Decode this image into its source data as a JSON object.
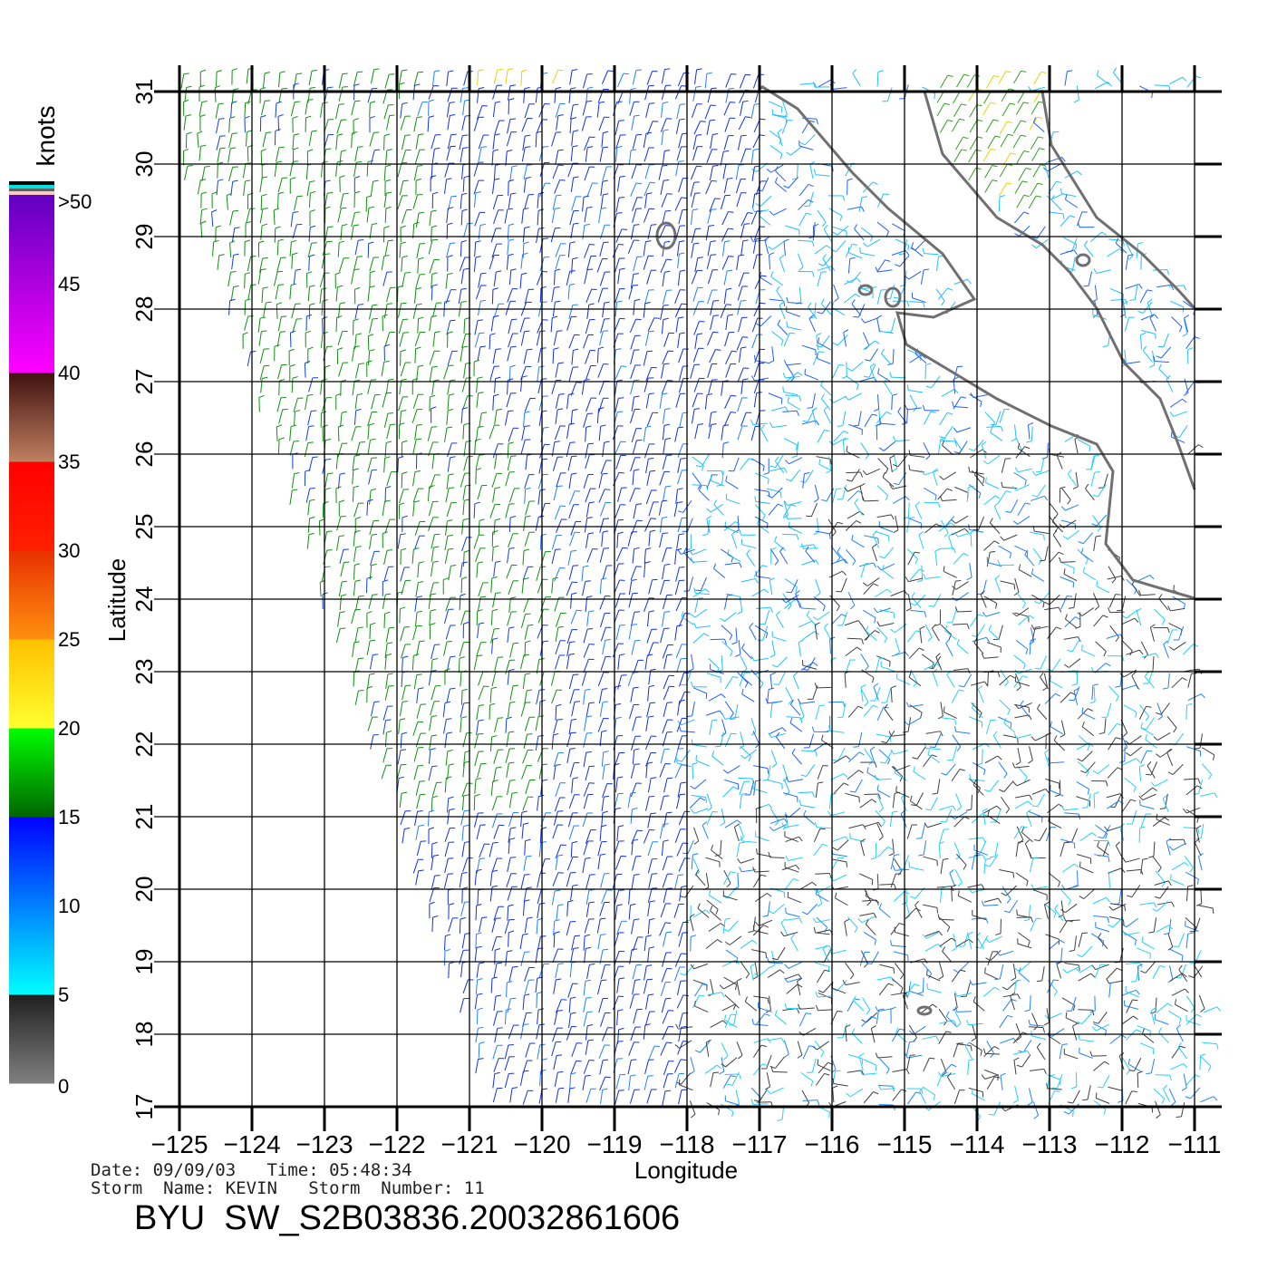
{
  "chart_data": {
    "type": "wind-vector-map",
    "xlabel": "Longitude",
    "ylabel": "Latitude",
    "xlim": [
      -125,
      -111
    ],
    "ylim": [
      17,
      31
    ],
    "x_ticks": [
      "−125",
      "−124",
      "−123",
      "−122",
      "−121",
      "−120",
      "−119",
      "−118",
      "−117",
      "−116",
      "−115",
      "−114",
      "−113",
      "−112",
      "−111"
    ],
    "y_ticks": [
      "17",
      "18",
      "19",
      "20",
      "21",
      "22",
      "23",
      "24",
      "25",
      "26",
      "27",
      "28",
      "29",
      "30",
      "31"
    ],
    "grid": true,
    "colorbar": {
      "unit": "knots",
      "labels": [
        "0",
        "5",
        "10",
        "15",
        "20",
        "25",
        "30",
        "35",
        "40",
        "45",
        ">50"
      ],
      "bins": [
        {
          "min": 0,
          "max": 5,
          "colors": [
            "#808080",
            "#202020"
          ]
        },
        {
          "min": 5,
          "max": 10,
          "colors": [
            "#00ffff",
            "#0080ff"
          ]
        },
        {
          "min": 10,
          "max": 15,
          "colors": [
            "#0080ff",
            "#0000ff"
          ]
        },
        {
          "min": 15,
          "max": 20,
          "colors": [
            "#006400",
            "#00ff00"
          ]
        },
        {
          "min": 20,
          "max": 25,
          "colors": [
            "#ffff30",
            "#ffc000"
          ]
        },
        {
          "min": 25,
          "max": 30,
          "colors": [
            "#ff9010",
            "#e83000"
          ]
        },
        {
          "min": 30,
          "max": 35,
          "colors": [
            "#ff2000",
            "#ff0000"
          ]
        },
        {
          "min": 35,
          "max": 40,
          "colors": [
            "#c08060",
            "#401010"
          ]
        },
        {
          "min": 40,
          "max": 50,
          "colors": [
            "#ff00ff",
            "#6000c0"
          ]
        }
      ]
    },
    "storm": {
      "date": "09/09/03",
      "time": "05:48:34",
      "name": "KEVIN",
      "number": "11"
    }
  },
  "info": {
    "line1": "Date: 09/09/03   Time: 05:48:34",
    "line2": "Storm  Name: KEVIN   Storm  Number: 11",
    "title": "BYU  SW_S2B03836.20032861606"
  }
}
